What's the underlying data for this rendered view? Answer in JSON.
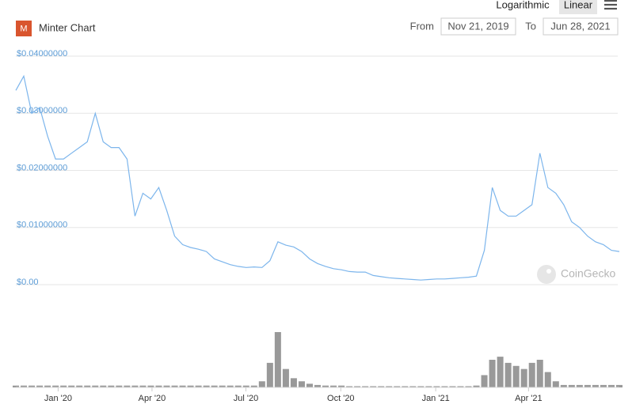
{
  "chart_data": {
    "type": "line",
    "title": "Minter Chart",
    "logo_text": "M",
    "scale_options": [
      "Logarithmic",
      "Linear"
    ],
    "log_scale": false,
    "from_label": "From",
    "to_label": "To",
    "range": {
      "from": "Nov 21, 2019",
      "to": "Jun 28, 2021"
    },
    "watermark": "CoinGecko",
    "ylim": [
      0,
      0.04
    ],
    "yticks": [
      {
        "value": 0,
        "label": "$0.00"
      },
      {
        "value": 0.01,
        "label": "$0.01000000"
      },
      {
        "value": 0.02,
        "label": "$0.02000000"
      },
      {
        "value": 0.03,
        "label": "$0.03000000"
      },
      {
        "value": 0.04,
        "label": "$0.04000000"
      }
    ],
    "xticks": [
      {
        "value": "2020-01",
        "label": "Jan '20"
      },
      {
        "value": "2020-04",
        "label": "Apr '20"
      },
      {
        "value": "2020-07",
        "label": "Jul '20"
      },
      {
        "value": "2020-10",
        "label": "Oct '20"
      },
      {
        "value": "2021-01",
        "label": "Jan '21"
      },
      {
        "value": "2021-04",
        "label": "Apr '21"
      }
    ],
    "grid": true,
    "series": [
      {
        "name": "Price",
        "color": "#7cb5ec",
        "values": [
          0.034,
          0.0365,
          0.03,
          0.031,
          0.026,
          0.022,
          0.022,
          0.023,
          0.024,
          0.025,
          0.03,
          0.025,
          0.024,
          0.024,
          0.022,
          0.012,
          0.016,
          0.015,
          0.017,
          0.013,
          0.0085,
          0.007,
          0.0065,
          0.0062,
          0.0058,
          0.0045,
          0.004,
          0.0035,
          0.0032,
          0.003,
          0.0031,
          0.003,
          0.0042,
          0.0075,
          0.0069,
          0.0066,
          0.0058,
          0.0045,
          0.0037,
          0.0032,
          0.0028,
          0.0026,
          0.0023,
          0.0022,
          0.0022,
          0.0016,
          0.0014,
          0.0012,
          0.0011,
          0.001,
          0.0009,
          0.0008,
          0.0009,
          0.001,
          0.001,
          0.0011,
          0.0012,
          0.0013,
          0.0015,
          0.006,
          0.017,
          0.013,
          0.012,
          0.012,
          0.013,
          0.014,
          0.023,
          0.017,
          0.016,
          0.014,
          0.011,
          0.01,
          0.0085,
          0.0075,
          0.007,
          0.006,
          0.0058
        ]
      },
      {
        "name": "Volume",
        "color": "#999999",
        "values": [
          3,
          3,
          3,
          3,
          3,
          3,
          3,
          3,
          3,
          3,
          3,
          3,
          3,
          3,
          3,
          3,
          3,
          3,
          3,
          3,
          3,
          3,
          3,
          3,
          3,
          3,
          3,
          3,
          3,
          3,
          3,
          10,
          40,
          90,
          30,
          15,
          10,
          6,
          4,
          3,
          3,
          3,
          2,
          2,
          2,
          2,
          2,
          2,
          2,
          2,
          2,
          2,
          2,
          2,
          2,
          2,
          2,
          2,
          3,
          20,
          45,
          50,
          40,
          35,
          30,
          40,
          45,
          25,
          10,
          4,
          4,
          4,
          4,
          4,
          4,
          4,
          4
        ]
      }
    ]
  }
}
